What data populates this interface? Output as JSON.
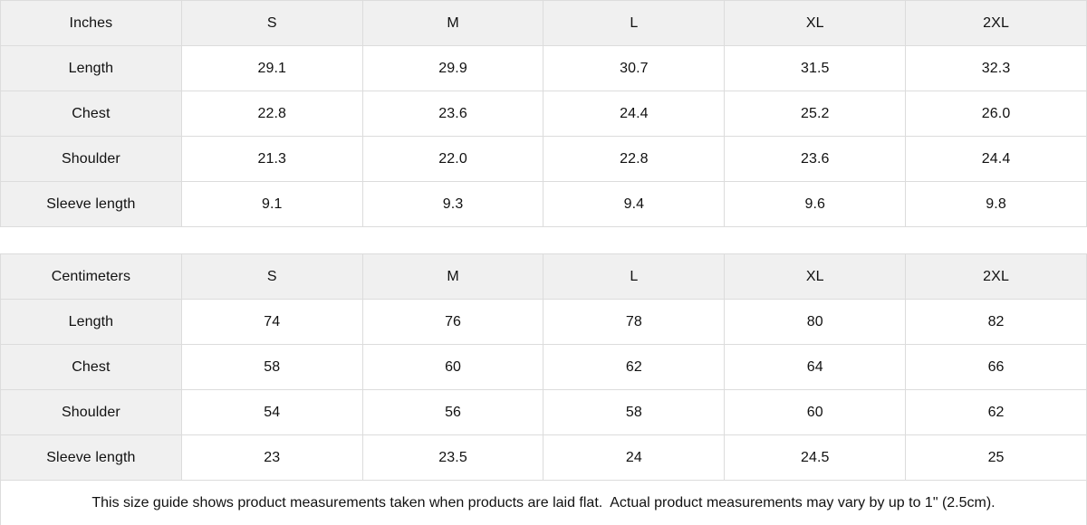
{
  "colors": {
    "header_bg": "#f0f0f0",
    "border": "#dcdcdc",
    "text": "#111111",
    "background": "#ffffff"
  },
  "chart_data": [
    {
      "type": "table",
      "title": "Inches",
      "columns": [
        "S",
        "M",
        "L",
        "XL",
        "2XL"
      ],
      "row_labels": [
        "Length",
        "Chest",
        "Shoulder",
        "Sleeve length"
      ],
      "rows": [
        [
          "29.1",
          "29.9",
          "30.7",
          "31.5",
          "32.3"
        ],
        [
          "22.8",
          "23.6",
          "24.4",
          "25.2",
          "26.0"
        ],
        [
          "21.3",
          "22.0",
          "22.8",
          "23.6",
          "24.4"
        ],
        [
          "9.1",
          "9.3",
          "9.4",
          "9.6",
          "9.8"
        ]
      ]
    },
    {
      "type": "table",
      "title": "Centimeters",
      "columns": [
        "S",
        "M",
        "L",
        "XL",
        "2XL"
      ],
      "row_labels": [
        "Length",
        "Chest",
        "Shoulder",
        "Sleeve length"
      ],
      "rows": [
        [
          "74",
          "76",
          "78",
          "80",
          "82"
        ],
        [
          "58",
          "60",
          "62",
          "64",
          "66"
        ],
        [
          "54",
          "56",
          "58",
          "60",
          "62"
        ],
        [
          "23",
          "23.5",
          "24",
          "24.5",
          "25"
        ]
      ]
    }
  ],
  "footer": {
    "note": "This size guide shows product measurements taken when products are laid flat.  Actual product measurements may vary by up to 1\" (2.5cm)."
  }
}
